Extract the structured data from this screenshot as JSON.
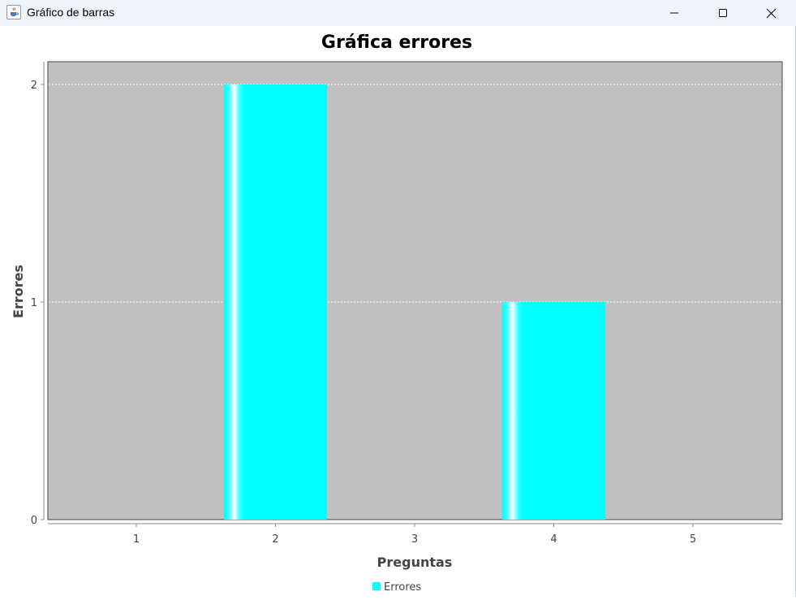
{
  "window": {
    "title": "Gráfico de barras",
    "app_icon": "java-coffee-cup-icon",
    "controls": {
      "minimize_icon": "minimize-icon",
      "maximize_icon": "maximize-icon",
      "close_icon": "close-icon"
    }
  },
  "colors": {
    "plot_background": "#c0c0c0",
    "bar": "#00ffff",
    "bar_highlight": "#ffffff",
    "gridline": "#ffffff",
    "axis_text": "#444444"
  },
  "chart_data": {
    "type": "bar",
    "title": "Gráfica errores",
    "xlabel": "Preguntas",
    "ylabel": "Errores",
    "categories": [
      "1",
      "2",
      "3",
      "4",
      "5"
    ],
    "series": [
      {
        "name": "Errores",
        "values": [
          0,
          2,
          0,
          1,
          0
        ]
      }
    ],
    "ylim": [
      0,
      2
    ],
    "yticks": [
      "0",
      "1",
      "2"
    ],
    "grid": true,
    "legend": "bottom-center"
  }
}
